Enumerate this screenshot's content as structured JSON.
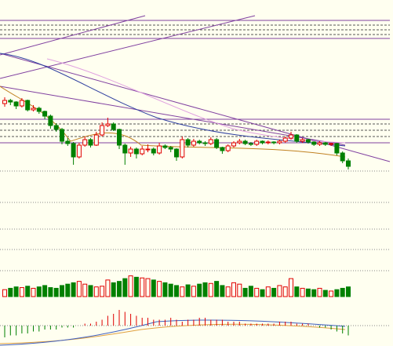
{
  "chart_data": {
    "type": "candlestick",
    "up_color": "#e00000",
    "down_color": "#008000",
    "ylim": [
      0,
      260
    ],
    "ohlc": [
      [
        128,
        136,
        124,
        132
      ],
      [
        132,
        134,
        126,
        130
      ],
      [
        130,
        131,
        121,
        125
      ],
      [
        125,
        135,
        123,
        132
      ],
      [
        132,
        133,
        118,
        120
      ],
      [
        120,
        126,
        118,
        122
      ],
      [
        122,
        124,
        115,
        118
      ],
      [
        118,
        119,
        108,
        112
      ],
      [
        112,
        114,
        96,
        100
      ],
      [
        100,
        103,
        92,
        95
      ],
      [
        95,
        97,
        76,
        80
      ],
      [
        80,
        84,
        74,
        77
      ],
      [
        77,
        79,
        50,
        60
      ],
      [
        60,
        78,
        58,
        75
      ],
      [
        75,
        86,
        73,
        82
      ],
      [
        82,
        84,
        72,
        75
      ],
      [
        75,
        92,
        74,
        88
      ],
      [
        88,
        104,
        86,
        100
      ],
      [
        100,
        110,
        98,
        102
      ],
      [
        102,
        104,
        93,
        95
      ],
      [
        95,
        96,
        70,
        75
      ],
      [
        75,
        77,
        50,
        65
      ],
      [
        65,
        73,
        60,
        70
      ],
      [
        70,
        72,
        58,
        64
      ],
      [
        64,
        74,
        62,
        70
      ],
      [
        70,
        76,
        66,
        70
      ],
      [
        70,
        72,
        62,
        65
      ],
      [
        65,
        78,
        63,
        74
      ],
      [
        74,
        76,
        70,
        72
      ],
      [
        72,
        74,
        66,
        70
      ],
      [
        70,
        71,
        55,
        60
      ],
      [
        60,
        86,
        58,
        82
      ],
      [
        82,
        84,
        72,
        75
      ],
      [
        75,
        83,
        73,
        80
      ],
      [
        80,
        82,
        76,
        78
      ],
      [
        78,
        80,
        74,
        77
      ],
      [
        77,
        85,
        75,
        82
      ],
      [
        82,
        84,
        70,
        72
      ],
      [
        72,
        73,
        64,
        68
      ],
      [
        68,
        76,
        66,
        74
      ],
      [
        74,
        80,
        72,
        78
      ],
      [
        78,
        83,
        76,
        80
      ],
      [
        80,
        82,
        75,
        77
      ],
      [
        77,
        79,
        74,
        76
      ],
      [
        76,
        82,
        74,
        80
      ],
      [
        80,
        81,
        76,
        78
      ],
      [
        78,
        81,
        76,
        79
      ],
      [
        79,
        80,
        76,
        78
      ],
      [
        78,
        82,
        76,
        80
      ],
      [
        80,
        86,
        78,
        84
      ],
      [
        84,
        92,
        82,
        88
      ],
      [
        88,
        89,
        78,
        80
      ],
      [
        80,
        84,
        78,
        82
      ],
      [
        82,
        83,
        77,
        79
      ],
      [
        79,
        80,
        74,
        76
      ],
      [
        76,
        80,
        74,
        78
      ],
      [
        78,
        79,
        74,
        76
      ],
      [
        76,
        78,
        74,
        77
      ],
      [
        77,
        78,
        62,
        65
      ],
      [
        65,
        67,
        52,
        55
      ],
      [
        55,
        58,
        44,
        48
      ]
    ],
    "volume_ylim": [
      0,
      100
    ],
    "volume": [
      10,
      12,
      14,
      13,
      15,
      12,
      14,
      16,
      13,
      12,
      16,
      18,
      20,
      22,
      18,
      16,
      14,
      15,
      24,
      20,
      22,
      26,
      30,
      28,
      27,
      26,
      24,
      22,
      20,
      18,
      16,
      14,
      17,
      15,
      18,
      20,
      19,
      22,
      16,
      14,
      20,
      18,
      12,
      15,
      12,
      10,
      14,
      12,
      16,
      14,
      26,
      14,
      12,
      11,
      10,
      12,
      9,
      8,
      10,
      12,
      14
    ],
    "macd_ylim": [
      -10,
      10
    ],
    "macd": [
      -6,
      -5,
      -5,
      -4,
      -4,
      -3,
      -3,
      -2,
      -2,
      -2,
      -1,
      -1,
      -1,
      0,
      1,
      1,
      2,
      3,
      5,
      6,
      8,
      7,
      6,
      5,
      4,
      4,
      3,
      3,
      3,
      4,
      3,
      2,
      3,
      3,
      4,
      4,
      3,
      3,
      3,
      2,
      2,
      2,
      1,
      1,
      1,
      1,
      1,
      1,
      2,
      2,
      2,
      1,
      1,
      1,
      0,
      -1,
      -1,
      -2,
      -3,
      -4,
      -5
    ]
  }
}
